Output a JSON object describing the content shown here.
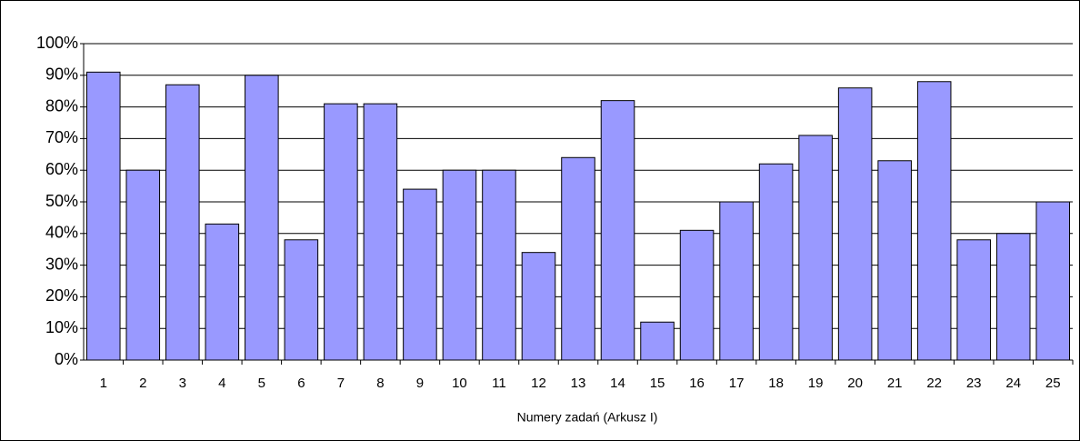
{
  "chart_data": {
    "type": "bar",
    "x_label": "Numery zadań (Arkusz I)",
    "categories": [
      "1",
      "2",
      "3",
      "4",
      "5",
      "6",
      "7",
      "8",
      "9",
      "10",
      "11",
      "12",
      "13",
      "14",
      "15",
      "16",
      "17",
      "18",
      "19",
      "20",
      "21",
      "22",
      "23",
      "24",
      "25"
    ],
    "values": [
      91,
      60,
      87,
      43,
      90,
      38,
      81,
      81,
      54,
      60,
      60,
      34,
      64,
      82,
      12,
      41,
      50,
      62,
      71,
      86,
      63,
      88,
      38,
      40,
      50
    ],
    "color": "#9999ff",
    "ylim": [
      0,
      100
    ],
    "yticks": [
      {
        "value": 0,
        "label": "0%"
      },
      {
        "value": 10,
        "label": "10%"
      },
      {
        "value": 20,
        "label": "20%"
      },
      {
        "value": 30,
        "label": "30%"
      },
      {
        "value": 40,
        "label": "40%"
      },
      {
        "value": 50,
        "label": "50%"
      },
      {
        "value": 60,
        "label": "60%"
      },
      {
        "value": 70,
        "label": "70%"
      },
      {
        "value": 80,
        "label": "80%"
      },
      {
        "value": 90,
        "label": "90%"
      },
      {
        "value": 100,
        "label": "100%"
      }
    ],
    "grid": true
  }
}
